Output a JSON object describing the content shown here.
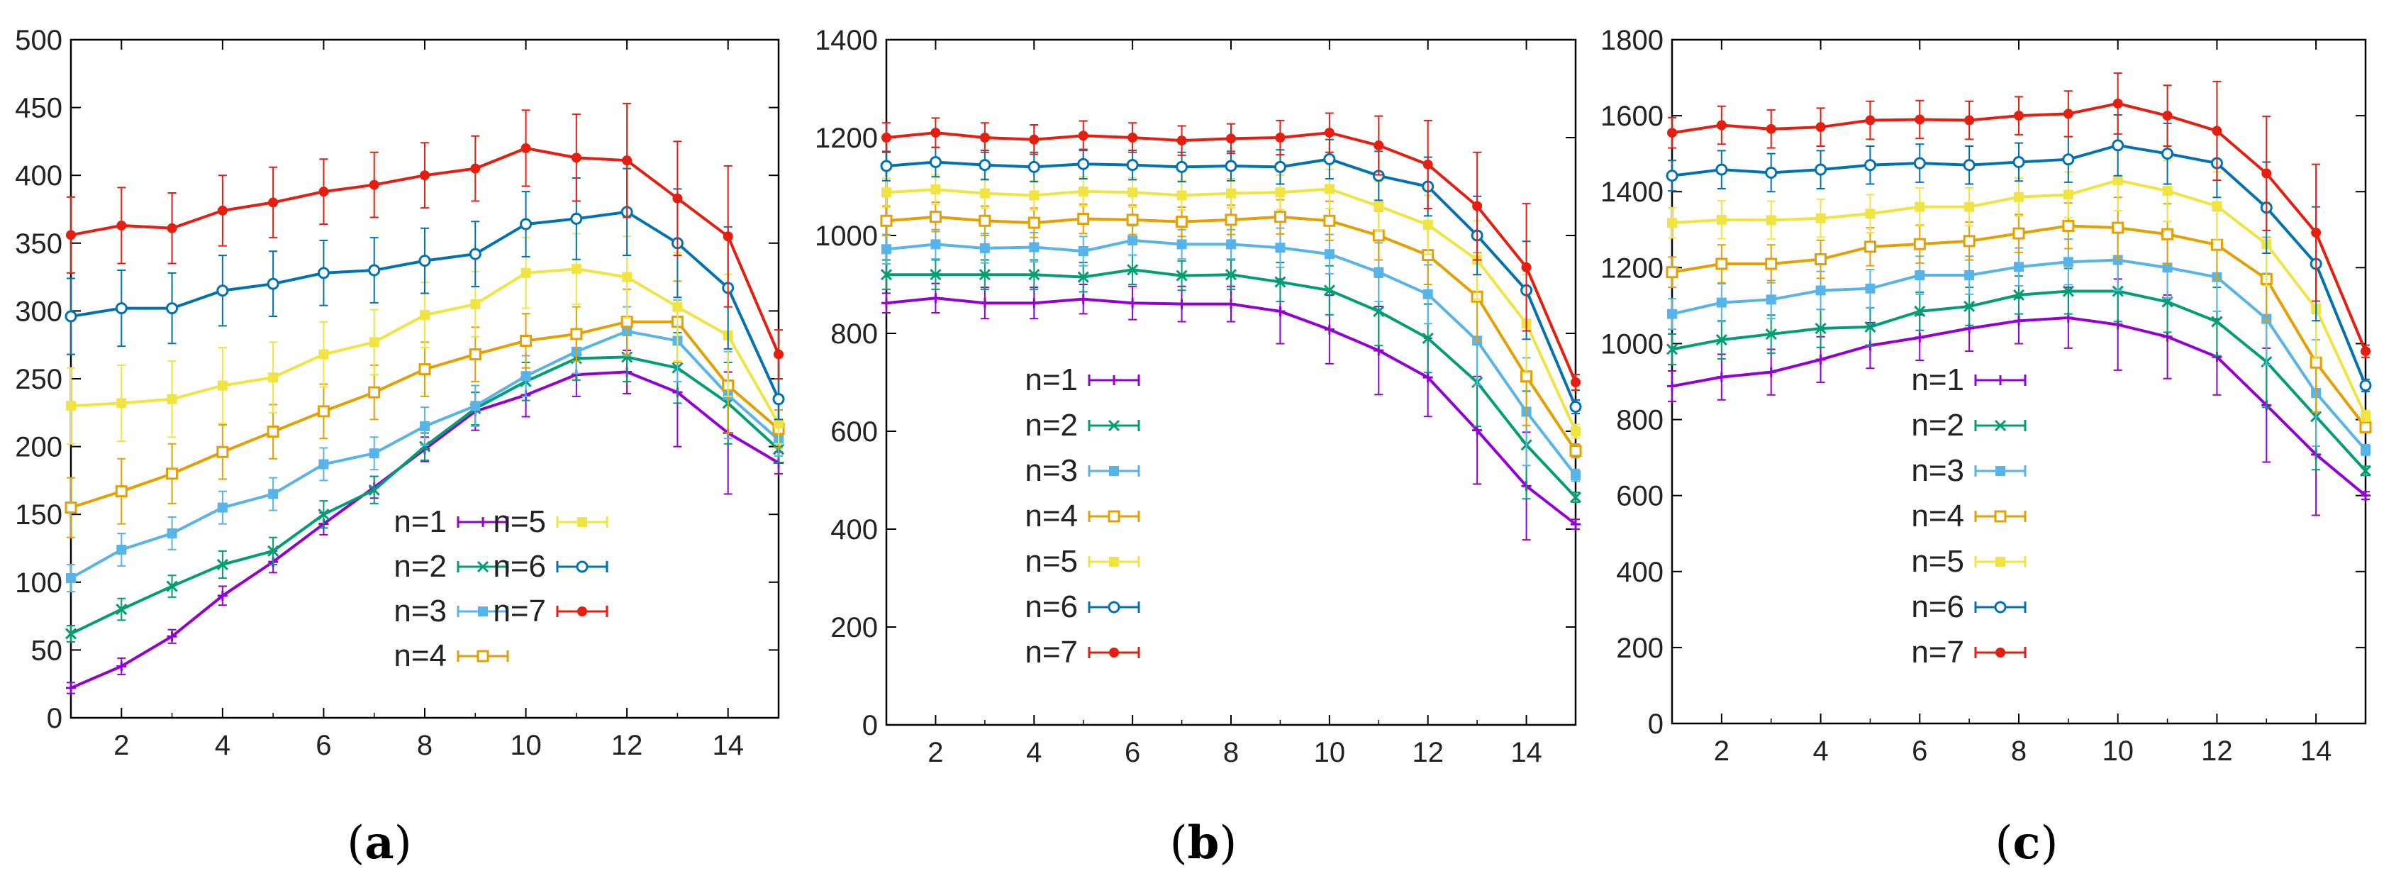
{
  "figure": {
    "panel_labels": [
      {
        "open": "(",
        "letter": "a",
        "close": ")"
      },
      {
        "open": "(",
        "letter": "b",
        "close": ")"
      },
      {
        "open": "(",
        "letter": "c",
        "close": ")"
      }
    ]
  },
  "series_colors": [
    "#9400d3",
    "#009e73",
    "#56b4e9",
    "#e69f00",
    "#f0e442",
    "#0072b2",
    "#e51e10"
  ],
  "series_markers": [
    "plus",
    "x",
    "filled-square",
    "open-square",
    "filled-square",
    "open-circle",
    "filled-circle"
  ],
  "chart_data": [
    {
      "type": "line",
      "title": "",
      "xlabel": "",
      "ylabel": "",
      "x": [
        1,
        2,
        3,
        4,
        5,
        6,
        7,
        8,
        9,
        10,
        11,
        12,
        13,
        14,
        15
      ],
      "xlim": [
        1,
        15
      ],
      "ylim": [
        0,
        500
      ],
      "xticks": [
        2,
        4,
        6,
        8,
        10,
        12,
        14
      ],
      "yticks": [
        0,
        50,
        100,
        150,
        200,
        250,
        300,
        350,
        400,
        450,
        500
      ],
      "legend_layout": "two-column",
      "series": [
        {
          "name": "n=1",
          "values": [
            22,
            38,
            60,
            90,
            115,
            143,
            170,
            198,
            226,
            238,
            253,
            255,
            240,
            210,
            188
          ],
          "errors": [
            4,
            6,
            5,
            7,
            8,
            8,
            8,
            9,
            14,
            16,
            16,
            16,
            40,
            45,
            8
          ]
        },
        {
          "name": "n=2",
          "values": [
            62,
            80,
            97,
            113,
            123,
            150,
            168,
            200,
            228,
            248,
            265,
            266,
            258,
            232,
            198
          ],
          "errors": [
            6,
            8,
            8,
            10,
            10,
            10,
            10,
            10,
            12,
            14,
            16,
            18,
            26,
            30,
            10
          ]
        },
        {
          "name": "n=3",
          "values": [
            103,
            124,
            136,
            155,
            165,
            187,
            195,
            215,
            230,
            252,
            270,
            285,
            278,
            238,
            205
          ],
          "errors": [
            10,
            12,
            12,
            12,
            12,
            12,
            12,
            14,
            15,
            15,
            16,
            18,
            30,
            32,
            12
          ]
        },
        {
          "name": "n=4",
          "values": [
            155,
            167,
            180,
            196,
            211,
            226,
            240,
            257,
            268,
            278,
            283,
            292,
            292,
            245,
            213
          ],
          "errors": [
            22,
            24,
            22,
            20,
            20,
            20,
            20,
            20,
            20,
            20,
            20,
            24,
            30,
            35,
            14
          ]
        },
        {
          "name": "n=5",
          "values": [
            230,
            232,
            235,
            245,
            251,
            268,
            277,
            297,
            305,
            328,
            331,
            325,
            303,
            282,
            217
          ],
          "errors": [
            28,
            28,
            28,
            28,
            26,
            24,
            24,
            24,
            24,
            26,
            26,
            30,
            40,
            45,
            15
          ]
        },
        {
          "name": "n=6",
          "values": [
            296,
            302,
            302,
            315,
            320,
            328,
            330,
            337,
            342,
            364,
            368,
            373,
            350,
            317,
            235
          ],
          "errors": [
            28,
            28,
            26,
            26,
            24,
            24,
            24,
            24,
            24,
            24,
            30,
            32,
            40,
            45,
            15
          ]
        },
        {
          "name": "n=7",
          "values": [
            356,
            363,
            361,
            374,
            380,
            388,
            393,
            400,
            405,
            420,
            413,
            411,
            383,
            355,
            268
          ],
          "errors": [
            28,
            28,
            26,
            26,
            26,
            24,
            24,
            24,
            24,
            28,
            32,
            42,
            42,
            52,
            18
          ]
        }
      ]
    },
    {
      "type": "line",
      "title": "",
      "xlabel": "",
      "ylabel": "",
      "x": [
        1,
        2,
        3,
        4,
        5,
        6,
        7,
        8,
        9,
        10,
        11,
        12,
        13,
        14,
        15
      ],
      "xlim": [
        1,
        15
      ],
      "ylim": [
        0,
        1400
      ],
      "xticks": [
        2,
        4,
        6,
        8,
        10,
        12,
        14
      ],
      "yticks": [
        0,
        200,
        400,
        600,
        800,
        1000,
        1200,
        1400
      ],
      "legend_layout": "single-column",
      "series": [
        {
          "name": "n=1",
          "values": [
            862,
            872,
            862,
            862,
            870,
            862,
            860,
            860,
            845,
            808,
            765,
            710,
            602,
            488,
            410
          ],
          "errors": [
            20,
            30,
            32,
            32,
            30,
            34,
            36,
            36,
            66,
            70,
            90,
            80,
            110,
            110,
            10
          ]
        },
        {
          "name": "n=2",
          "values": [
            920,
            920,
            920,
            920,
            915,
            930,
            918,
            920,
            905,
            888,
            845,
            790,
            700,
            572,
            465
          ],
          "errors": [
            30,
            30,
            30,
            30,
            30,
            30,
            30,
            30,
            40,
            50,
            70,
            70,
            90,
            110,
            10
          ]
        },
        {
          "name": "n=3",
          "values": [
            972,
            982,
            974,
            976,
            968,
            990,
            982,
            982,
            975,
            962,
            925,
            880,
            785,
            640,
            510
          ],
          "errors": [
            30,
            30,
            30,
            30,
            30,
            30,
            30,
            30,
            40,
            40,
            60,
            60,
            90,
            110,
            12
          ]
        },
        {
          "name": "n=4",
          "values": [
            1030,
            1038,
            1030,
            1026,
            1034,
            1032,
            1028,
            1032,
            1038,
            1030,
            1000,
            960,
            875,
            712,
            560
          ],
          "errors": [
            30,
            30,
            30,
            30,
            30,
            30,
            30,
            30,
            35,
            40,
            50,
            60,
            90,
            100,
            14
          ]
        },
        {
          "name": "n=5",
          "values": [
            1088,
            1094,
            1086,
            1082,
            1090,
            1088,
            1082,
            1086,
            1088,
            1095,
            1060,
            1022,
            950,
            820,
            600
          ],
          "errors": [
            30,
            30,
            30,
            30,
            30,
            30,
            30,
            30,
            35,
            40,
            50,
            60,
            80,
            100,
            14
          ]
        },
        {
          "name": "n=6",
          "values": [
            1142,
            1150,
            1144,
            1140,
            1146,
            1144,
            1140,
            1142,
            1140,
            1156,
            1122,
            1100,
            1000,
            888,
            650
          ],
          "errors": [
            30,
            30,
            30,
            30,
            30,
            30,
            30,
            30,
            35,
            40,
            50,
            60,
            80,
            100,
            14
          ]
        },
        {
          "name": "n=7",
          "values": [
            1200,
            1210,
            1200,
            1196,
            1204,
            1200,
            1194,
            1198,
            1200,
            1210,
            1184,
            1145,
            1060,
            935,
            700
          ],
          "errors": [
            30,
            30,
            30,
            30,
            30,
            30,
            30,
            30,
            35,
            40,
            60,
            90,
            110,
            130,
            16
          ]
        }
      ]
    },
    {
      "type": "line",
      "title": "",
      "xlabel": "",
      "ylabel": "",
      "x": [
        1,
        2,
        3,
        4,
        5,
        6,
        7,
        8,
        9,
        10,
        11,
        12,
        13,
        14,
        15
      ],
      "xlim": [
        1,
        15
      ],
      "ylim": [
        0,
        1800
      ],
      "xticks": [
        2,
        4,
        6,
        8,
        10,
        12,
        14
      ],
      "yticks": [
        0,
        200,
        400,
        600,
        800,
        1000,
        1200,
        1400,
        1600,
        1800
      ],
      "legend_layout": "single-column",
      "series": [
        {
          "name": "n=1",
          "values": [
            888,
            912,
            925,
            958,
            995,
            1016,
            1040,
            1060,
            1068,
            1050,
            1018,
            965,
            838,
            708,
            600
          ],
          "errors": [
            40,
            60,
            60,
            60,
            60,
            60,
            60,
            60,
            80,
            120,
            110,
            100,
            150,
            160,
            10
          ]
        },
        {
          "name": "n=2",
          "values": [
            985,
            1010,
            1025,
            1040,
            1044,
            1085,
            1098,
            1128,
            1138,
            1138,
            1110,
            1058,
            952,
            808,
            665
          ],
          "errors": [
            40,
            50,
            50,
            50,
            50,
            50,
            50,
            50,
            60,
            80,
            80,
            90,
            120,
            140,
            12
          ]
        },
        {
          "name": "n=3",
          "values": [
            1078,
            1108,
            1116,
            1140,
            1145,
            1180,
            1180,
            1202,
            1215,
            1220,
            1200,
            1175,
            1065,
            870,
            720
          ],
          "errors": [
            40,
            50,
            50,
            50,
            50,
            50,
            50,
            50,
            60,
            80,
            80,
            90,
            120,
            140,
            14
          ]
        },
        {
          "name": "n=4",
          "values": [
            1188,
            1210,
            1210,
            1222,
            1255,
            1262,
            1270,
            1290,
            1310,
            1305,
            1288,
            1260,
            1170,
            950,
            780
          ],
          "errors": [
            40,
            50,
            50,
            50,
            50,
            50,
            50,
            50,
            60,
            80,
            80,
            90,
            110,
            130,
            14
          ]
        },
        {
          "name": "n=5",
          "values": [
            1318,
            1326,
            1325,
            1330,
            1342,
            1360,
            1360,
            1386,
            1392,
            1430,
            1402,
            1362,
            1262,
            1092,
            810
          ],
          "errors": [
            40,
            50,
            50,
            50,
            50,
            50,
            50,
            50,
            60,
            80,
            80,
            90,
            110,
            130,
            14
          ]
        },
        {
          "name": "n=6",
          "values": [
            1442,
            1458,
            1450,
            1458,
            1470,
            1475,
            1470,
            1478,
            1485,
            1522,
            1500,
            1475,
            1358,
            1210,
            890
          ],
          "errors": [
            40,
            50,
            50,
            50,
            50,
            50,
            50,
            50,
            60,
            80,
            80,
            90,
            120,
            150,
            16
          ]
        },
        {
          "name": "n=7",
          "values": [
            1555,
            1575,
            1565,
            1570,
            1588,
            1590,
            1588,
            1600,
            1605,
            1632,
            1600,
            1560,
            1448,
            1292,
            980
          ],
          "errors": [
            40,
            50,
            50,
            50,
            50,
            50,
            50,
            50,
            60,
            80,
            80,
            130,
            150,
            180,
            16
          ]
        }
      ]
    }
  ]
}
